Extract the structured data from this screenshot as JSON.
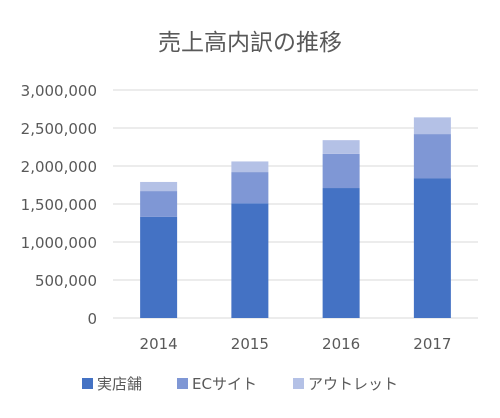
{
  "chart_data": {
    "type": "bar",
    "stacked": true,
    "title": "売上高内訳の推移",
    "categories": [
      "2014",
      "2015",
      "2016",
      "2017"
    ],
    "series": [
      {
        "name": "実店舗",
        "values": [
          1330000,
          1510000,
          1710000,
          1840000
        ]
      },
      {
        "name": "ECサイト",
        "values": [
          340000,
          410000,
          450000,
          580000
        ]
      },
      {
        "name": "アウトレット",
        "values": [
          120000,
          140000,
          180000,
          220000
        ]
      }
    ],
    "ylim": [
      0,
      3000000
    ],
    "yticks": [
      0,
      500000,
      1000000,
      1500000,
      2000000,
      2500000,
      3000000
    ],
    "ytick_labels": [
      "0",
      "500,000",
      "1,000,000",
      "1,500,000",
      "2,000,000",
      "2,500,000",
      "3,000,000"
    ],
    "grid": true,
    "legend_position": "bottom",
    "colors": [
      "#4472c4",
      "#7f97d5",
      "#b4c1e6"
    ]
  }
}
